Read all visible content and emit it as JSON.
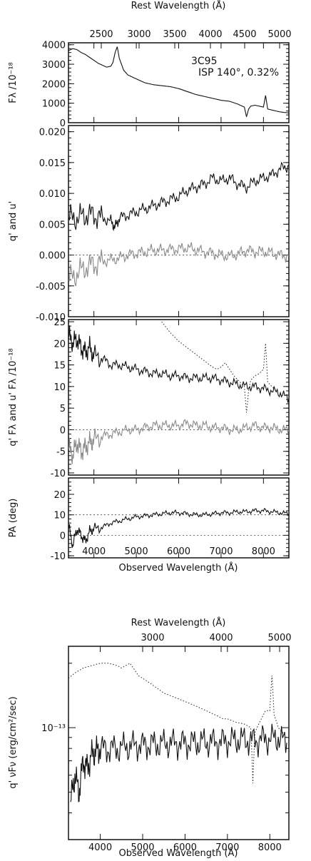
{
  "figure_top": {
    "top_axis_title": "Rest Wavelength (Å)",
    "bottom_axis_title": "Observed Wavelength (Å)",
    "top_ticks": [
      "2500",
      "3000",
      "3500",
      "4000",
      "4500",
      "5000"
    ],
    "bottom_ticks": [
      "4000",
      "5000",
      "6000",
      "7000",
      "8000"
    ]
  },
  "figure_bottom": {
    "top_axis_title": "Rest Wavelength (Å)",
    "bottom_axis_title": "Observed Wavelength (Å)",
    "top_ticks": [
      "3000",
      "4000",
      "5000"
    ],
    "bottom_ticks": [
      "4000",
      "5000",
      "6000",
      "7000",
      "8000"
    ]
  },
  "chart_data": [
    {
      "type": "line",
      "ylabel": "Fλ /10⁻¹⁸",
      "annotation_lines": [
        "3C95",
        "ISP 140°, 0.32%"
      ],
      "xlim": [
        3400,
        8600
      ],
      "ylim": [
        0,
        4100
      ],
      "y_ticks": [
        "0",
        "1000",
        "2000",
        "3000",
        "4000"
      ],
      "series": [
        {
          "style": "dark",
          "x": [
            3400,
            3500,
            3600,
            3700,
            3800,
            3900,
            4000,
            4100,
            4200,
            4300,
            4400,
            4450,
            4500,
            4550,
            4600,
            4700,
            4800,
            5000,
            5200,
            5400,
            5600,
            5800,
            6000,
            6200,
            6400,
            6600,
            6800,
            7000,
            7200,
            7400,
            7550,
            7600,
            7650,
            7700,
            7800,
            7900,
            8000,
            8050,
            8100,
            8200,
            8400,
            8600
          ],
          "y": [
            3700,
            3800,
            3750,
            3600,
            3500,
            3350,
            3200,
            3050,
            2950,
            2850,
            2900,
            3100,
            3600,
            3900,
            3300,
            2700,
            2450,
            2250,
            2050,
            1950,
            1900,
            1850,
            1750,
            1600,
            1450,
            1350,
            1250,
            1150,
            1100,
            950,
            800,
            300,
            700,
            850,
            900,
            850,
            800,
            1400,
            700,
            650,
            550,
            500
          ]
        }
      ]
    },
    {
      "type": "line",
      "ylabel": "q' and u'",
      "xlim": [
        3400,
        8600
      ],
      "ylim": [
        -0.01,
        0.021
      ],
      "y_ticks": [
        "-0.010",
        "-0.005",
        "0.000",
        "0.005",
        "0.010",
        "0.015",
        "0.020"
      ],
      "series": [
        {
          "style": "dark",
          "x": [
            3400,
            3600,
            3800,
            4000,
            4200,
            4400,
            4500,
            4600,
            4800,
            5000,
            5200,
            5400,
            5600,
            5800,
            6000,
            6200,
            6400,
            6600,
            6800,
            7000,
            7200,
            7400,
            7600,
            7800,
            8000,
            8200,
            8400,
            8600
          ],
          "y": [
            0.006,
            0.006,
            0.0065,
            0.0065,
            0.006,
            0.0055,
            0.0045,
            0.006,
            0.0065,
            0.007,
            0.0075,
            0.008,
            0.0085,
            0.009,
            0.0095,
            0.0105,
            0.011,
            0.0115,
            0.0125,
            0.012,
            0.0125,
            0.0115,
            0.011,
            0.012,
            0.0125,
            0.013,
            0.014,
            0.0145
          ]
        },
        {
          "style": "gray",
          "x": [
            3400,
            3600,
            3800,
            4000,
            4200,
            4400,
            4600,
            4800,
            5000,
            5200,
            5400,
            5600,
            5800,
            6000,
            6200,
            6400,
            6600,
            6800,
            7000,
            7200,
            7400,
            7600,
            7800,
            8000,
            8200,
            8400,
            8600
          ],
          "y": [
            -0.004,
            -0.003,
            -0.002,
            -0.0015,
            -0.001,
            -0.0008,
            -0.0005,
            0.0,
            0.0003,
            0.0005,
            0.0008,
            0.0008,
            0.0009,
            0.001,
            0.0012,
            0.0009,
            0.0005,
            0.0003,
            0.0,
            -0.0002,
            0.0002,
            0.0008,
            0.0005,
            0.0006,
            0.0003,
            0.0,
            -0.0002
          ]
        }
      ]
    },
    {
      "type": "line",
      "ylabel": "q' Fλ and u' Fλ /10⁻¹⁸",
      "xlim": [
        3400,
        8600
      ],
      "ylim": [
        -10.5,
        25.5
      ],
      "y_ticks": [
        "-10",
        "-5",
        "0",
        "5",
        "10",
        "15",
        "20",
        "25"
      ],
      "series": [
        {
          "style": "dark",
          "x": [
            3400,
            3500,
            3600,
            3700,
            3800,
            3900,
            4000,
            4200,
            4400,
            4600,
            4800,
            5000,
            5200,
            5400,
            5600,
            5800,
            6000,
            6200,
            6400,
            6600,
            6800,
            7000,
            7200,
            7400,
            7600,
            7800,
            8000,
            8200,
            8400,
            8600
          ],
          "y": [
            22,
            20,
            21,
            19,
            18,
            19,
            17,
            16.5,
            15,
            15,
            14.5,
            14,
            13.5,
            13,
            13,
            12.5,
            12.5,
            12,
            12,
            12,
            12,
            11.5,
            11,
            10.5,
            10,
            10,
            9.5,
            9,
            8.5,
            7
          ]
        },
        {
          "style": "gray",
          "x": [
            3400,
            3500,
            3600,
            3700,
            3800,
            3900,
            4000,
            4200,
            4400,
            4600,
            4800,
            5000,
            5200,
            5400,
            5600,
            5800,
            6000,
            6200,
            6400,
            6600,
            6800,
            7000,
            7200,
            7400,
            7600,
            7800,
            8000,
            8200,
            8400,
            8600
          ],
          "y": [
            -4,
            -6,
            -3,
            -5,
            -4,
            -3,
            -2.5,
            -1.5,
            -1,
            -0.5,
            0,
            0,
            0.5,
            1,
            1,
            1,
            1,
            1.5,
            1,
            1,
            0.5,
            0.5,
            0,
            0,
            0.5,
            1,
            0.5,
            0.5,
            0,
            0
          ]
        },
        {
          "style": "dotted",
          "x": [
            5600,
            5800,
            6000,
            6200,
            6400,
            6600,
            6800,
            6900,
            7000,
            7100,
            7200,
            7300,
            7400,
            7550,
            7600,
            7650,
            7700,
            7800,
            7900,
            8000,
            8050,
            8100,
            8200,
            8300
          ],
          "y": [
            25,
            22.5,
            20.5,
            19,
            17.5,
            16,
            14.5,
            14,
            14.5,
            15.5,
            14,
            12.5,
            11.5,
            10,
            4,
            9,
            11.5,
            12.5,
            13,
            14,
            20,
            11,
            10,
            9
          ]
        }
      ]
    },
    {
      "type": "line",
      "ylabel": "PA (deg)",
      "xlim": [
        3400,
        8600
      ],
      "ylim": [
        -11,
        28
      ],
      "y_ticks": [
        "-10",
        "0",
        "10",
        "20"
      ],
      "series": [
        {
          "style": "dark",
          "x": [
            3400,
            3500,
            3600,
            3700,
            3800,
            3900,
            4000,
            4200,
            4400,
            4600,
            4800,
            5000,
            5200,
            5400,
            5600,
            5800,
            6000,
            6200,
            6400,
            6600,
            6800,
            7000,
            7200,
            7400,
            7600,
            7800,
            8000,
            8200,
            8400,
            8600
          ],
          "y": [
            5,
            -5,
            3,
            0,
            -3,
            2,
            3,
            4,
            6,
            7,
            8,
            9,
            9.5,
            10,
            10.5,
            11,
            11,
            10.5,
            10,
            10,
            10.5,
            11,
            11,
            11.5,
            11.5,
            12,
            12,
            11.5,
            11,
            10.5
          ]
        }
      ]
    },
    {
      "type": "line",
      "ylabel": "q' νFν (erg/cm²/sec)",
      "xlim": [
        3250,
        8450
      ],
      "y_scale": "log",
      "y_tick_label": "10⁻¹³",
      "series": [
        {
          "style": "dark",
          "x": [
            3300,
            3400,
            3500,
            3600,
            3700,
            3800,
            3900,
            4000,
            4200,
            4400,
            4600,
            4800,
            5000,
            5200,
            5400,
            5600,
            5800,
            6000,
            6200,
            6400,
            6600,
            6800,
            7000,
            7200,
            7400,
            7600,
            7800,
            8000,
            8200,
            8400
          ],
          "y": [
            0.045,
            0.06,
            0.05,
            0.07,
            0.065,
            0.075,
            0.078,
            0.08,
            0.08,
            0.08,
            0.082,
            0.083,
            0.083,
            0.084,
            0.084,
            0.085,
            0.085,
            0.085,
            0.085,
            0.086,
            0.086,
            0.086,
            0.087,
            0.088,
            0.088,
            0.087,
            0.089,
            0.089,
            0.09,
            0.085
          ]
        },
        {
          "style": "dotted",
          "x": [
            3250,
            3400,
            3600,
            3800,
            4000,
            4200,
            4400,
            4500,
            4700,
            4900,
            5100,
            5300,
            5500,
            5700,
            5900,
            6100,
            6300,
            6500,
            6700,
            6900,
            7000,
            7100,
            7200,
            7400,
            7550,
            7600,
            7650,
            7700,
            7800,
            7900,
            8000,
            8050,
            8100,
            8200,
            8300,
            8400
          ],
          "y": [
            0.17,
            0.18,
            0.19,
            0.195,
            0.2,
            0.2,
            0.195,
            0.19,
            0.2,
            0.175,
            0.165,
            0.155,
            0.145,
            0.14,
            0.135,
            0.13,
            0.125,
            0.12,
            0.115,
            0.11,
            0.11,
            0.108,
            0.106,
            0.104,
            0.1,
            0.055,
            0.095,
            0.1,
            0.11,
            0.12,
            0.12,
            0.175,
            0.115,
            0.1,
            0.095,
            0.09
          ]
        }
      ]
    }
  ]
}
